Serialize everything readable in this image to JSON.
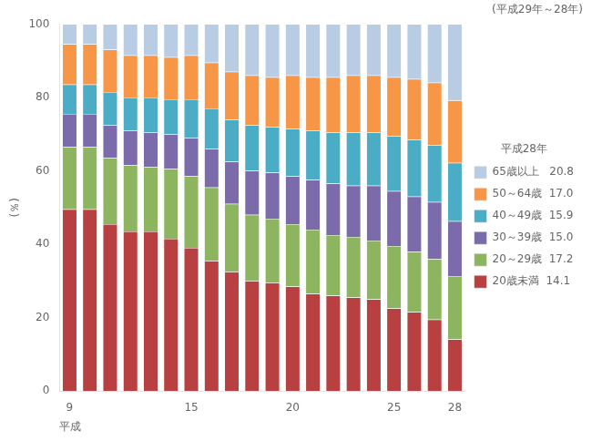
{
  "chart_data": {
    "type": "bar",
    "stacked": true,
    "subtitle": "(平成29年～28年)",
    "xlabel": "平成",
    "ylabel": "(％)",
    "legend_title": "平成28年",
    "legend": "right",
    "grid": false,
    "categories": [
      "9",
      null,
      null,
      null,
      null,
      null,
      "15",
      null,
      null,
      null,
      null,
      "20",
      null,
      null,
      null,
      null,
      "25",
      null,
      null,
      "28"
    ],
    "series": [
      {
        "name": "20歳未満  14.1",
        "color": "#b94040",
        "values": [
          49.5,
          49.5,
          45.5,
          43.5,
          43.5,
          41.5,
          39.0,
          35.5,
          32.5,
          30.0,
          29.5,
          28.5,
          26.5,
          26.0,
          25.5,
          25.0,
          22.5,
          21.5,
          19.5,
          14.1
        ]
      },
      {
        "name": "20～29歳  17.2",
        "color": "#8db560",
        "values": [
          17.0,
          17.0,
          18.0,
          18.0,
          17.5,
          19.0,
          19.5,
          20.0,
          18.5,
          18.0,
          17.5,
          17.0,
          17.5,
          16.5,
          16.5,
          16.0,
          17.0,
          16.5,
          16.5,
          17.2
        ]
      },
      {
        "name": "30～39歳  15.0",
        "color": "#7b6baa",
        "values": [
          9.0,
          9.0,
          9.0,
          9.5,
          9.5,
          9.5,
          10.5,
          10.5,
          11.5,
          12.0,
          12.5,
          13.0,
          13.5,
          14.0,
          14.0,
          15.0,
          15.0,
          15.0,
          15.5,
          15.0
        ]
      },
      {
        "name": "40～49歳  15.9",
        "color": "#4bacc6",
        "values": [
          8.0,
          8.0,
          9.0,
          9.0,
          9.5,
          9.5,
          10.5,
          11.0,
          11.5,
          12.5,
          12.5,
          13.0,
          13.5,
          14.0,
          14.5,
          14.5,
          15.0,
          15.5,
          15.5,
          15.9
        ]
      },
      {
        "name": "50～64歳  17.0",
        "color": "#f79646",
        "values": [
          11.0,
          11.0,
          11.5,
          11.5,
          11.5,
          11.5,
          12.0,
          12.5,
          13.0,
          13.5,
          13.5,
          14.5,
          14.5,
          15.0,
          15.5,
          15.5,
          16.0,
          16.5,
          17.0,
          17.0
        ]
      },
      {
        "name": "65歳以上   20.8",
        "color": "#b8cce4",
        "values": [
          5.5,
          5.5,
          7.0,
          8.5,
          8.5,
          9.0,
          8.5,
          10.5,
          13.0,
          14.0,
          14.5,
          14.0,
          14.5,
          14.5,
          14.0,
          14.0,
          14.5,
          15.0,
          16.0,
          20.8
        ]
      }
    ],
    "ylim": [
      0,
      100
    ],
    "yticks": [
      0,
      20,
      40,
      60,
      80,
      100
    ]
  }
}
